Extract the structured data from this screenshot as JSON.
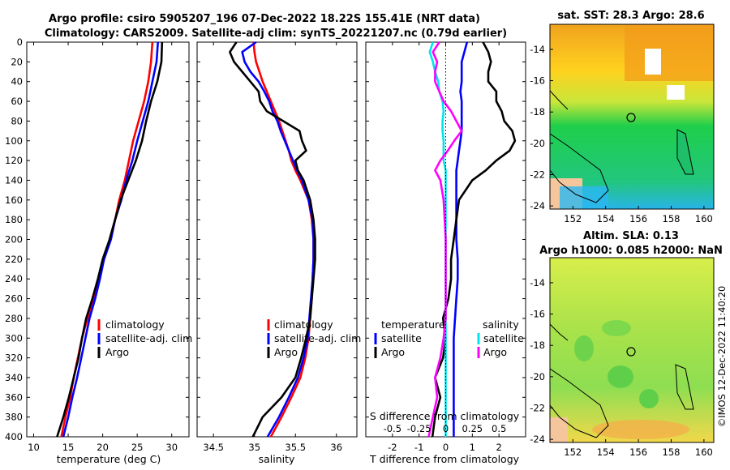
{
  "title": {
    "line1": "Argo profile: csiro 5905207_196 07-Dec-2022 18.22S 155.41E (NRT data)",
    "line2": "Climatology: CARS2009. Satellite-adj clim: synTS_20221207.nc (0.79d earlier)"
  },
  "colors": {
    "climatology": "#ff0000",
    "satellite": "#0000ff",
    "argo": "#000000",
    "sat_salinity": "#00e5ee",
    "argo_salinity": "#ff00ff"
  },
  "depth_axis": {
    "range": [
      0,
      400
    ],
    "ticks": [
      "0",
      "20",
      "40",
      "60",
      "80",
      "100",
      "120",
      "140",
      "160",
      "180",
      "200",
      "220",
      "240",
      "260",
      "280",
      "300",
      "320",
      "340",
      "360",
      "380",
      "400"
    ]
  },
  "chart_data": [
    {
      "type": "line",
      "name": "temperature",
      "xlabel": "temperature (deg C)",
      "xlim": [
        9,
        32.5
      ],
      "xticks": [
        "10",
        "15",
        "20",
        "25",
        "30"
      ],
      "ylim": [
        400,
        0
      ],
      "legend": [
        "climatology",
        "satellite-adj. clim",
        "Argo"
      ],
      "depth": [
        0,
        20,
        40,
        60,
        80,
        100,
        120,
        140,
        160,
        180,
        200,
        220,
        240,
        260,
        280,
        300,
        320,
        340,
        360,
        380,
        400
      ],
      "series": [
        {
          "name": "climatology",
          "values": [
            27.2,
            27.0,
            26.6,
            26.0,
            25.2,
            24.4,
            23.8,
            23.2,
            22.4,
            21.8,
            21.0,
            20.2,
            19.4,
            18.6,
            17.8,
            17.0,
            16.4,
            15.8,
            15.3,
            14.6,
            14.0
          ]
        },
        {
          "name": "satellite-adj. clim",
          "values": [
            28.0,
            27.8,
            27.2,
            26.6,
            25.8,
            25.0,
            24.3,
            23.4,
            22.7,
            21.8,
            21.2,
            20.2,
            19.6,
            18.9,
            18.1,
            17.5,
            16.9,
            16.3,
            15.6,
            15.0,
            14.3
          ]
        },
        {
          "name": "Argo",
          "values": [
            28.6,
            28.5,
            27.9,
            27.0,
            26.3,
            25.7,
            24.8,
            23.7,
            22.6,
            21.8,
            21.0,
            20.0,
            19.3,
            18.5,
            17.6,
            17.0,
            16.5,
            15.8,
            15.1,
            14.3,
            13.4
          ]
        }
      ]
    },
    {
      "type": "line",
      "name": "salinity",
      "xlabel": "salinity",
      "xlim": [
        34.3,
        36.25
      ],
      "xticks": [
        "34.5",
        "35",
        "35.5",
        "36"
      ],
      "ylim": [
        400,
        0
      ],
      "legend": [
        "climatology",
        "satellite-adj. clim",
        "Argo"
      ],
      "depth": [
        0,
        10,
        20,
        30,
        40,
        50,
        60,
        70,
        80,
        90,
        100,
        110,
        120,
        130,
        140,
        160,
        180,
        200,
        220,
        240,
        260,
        280,
        300,
        320,
        340,
        360,
        380,
        400
      ],
      "series": [
        {
          "name": "climatology",
          "values": [
            34.99,
            35.0,
            35.02,
            35.06,
            35.1,
            35.15,
            35.2,
            35.25,
            35.3,
            35.34,
            35.38,
            35.42,
            35.45,
            35.5,
            35.56,
            35.66,
            35.7,
            35.72,
            35.72,
            35.71,
            35.7,
            35.68,
            35.66,
            35.62,
            35.56,
            35.45,
            35.33,
            35.2
          ]
        },
        {
          "name": "satellite-adj. clim",
          "values": [
            35.02,
            34.85,
            34.88,
            34.95,
            35.05,
            35.12,
            35.18,
            35.22,
            35.28,
            35.32,
            35.37,
            35.42,
            35.47,
            35.52,
            35.58,
            35.66,
            35.71,
            35.72,
            35.72,
            35.71,
            35.69,
            35.67,
            35.65,
            35.6,
            35.53,
            35.42,
            35.3,
            35.16
          ]
        },
        {
          "name": "Argo",
          "values": [
            34.78,
            34.7,
            34.75,
            34.85,
            34.95,
            35.05,
            35.07,
            35.15,
            35.35,
            35.55,
            35.58,
            35.63,
            35.5,
            35.53,
            35.6,
            35.68,
            35.72,
            35.74,
            35.74,
            35.72,
            35.7,
            35.68,
            35.63,
            35.57,
            35.5,
            35.33,
            35.1,
            34.98
          ]
        }
      ]
    },
    {
      "type": "line",
      "name": "difference_from_climatology",
      "xlabel": "T difference from climatology",
      "xlabel_top": "S difference from climatology",
      "xlim": [
        -3,
        3
      ],
      "xticks": [
        "-2",
        "-1",
        "0",
        "1",
        "2"
      ],
      "xticks_s": [
        "-0.5",
        "-0.25",
        "0",
        "0.25",
        "0.5"
      ],
      "ylim": [
        400,
        0
      ],
      "legend_temperature_title": "temperature",
      "legend_temperature": [
        "satellite",
        "Argo"
      ],
      "legend_salinity_title": "salinity",
      "legend_salinity": [
        "satellite",
        "Argo"
      ],
      "depth": [
        0,
        10,
        20,
        30,
        40,
        50,
        60,
        70,
        80,
        90,
        100,
        110,
        120,
        130,
        140,
        160,
        180,
        200,
        220,
        240,
        260,
        280,
        300,
        320,
        340,
        360,
        380,
        400
      ],
      "series": [
        {
          "name": "T satellite",
          "values": [
            0.8,
            0.7,
            0.6,
            0.6,
            0.6,
            0.55,
            0.6,
            0.6,
            0.6,
            0.6,
            0.55,
            0.5,
            0.45,
            0.4,
            0.4,
            0.4,
            0.4,
            0.4,
            0.45,
            0.45,
            0.4,
            0.35,
            0.3,
            0.3,
            0.3,
            0.3,
            0.3,
            0.3
          ]
        },
        {
          "name": "T Argo",
          "values": [
            1.4,
            1.6,
            1.7,
            1.6,
            1.6,
            1.9,
            1.9,
            2.1,
            2.2,
            2.5,
            2.6,
            2.4,
            1.9,
            1.5,
            1.0,
            0.5,
            0.4,
            0.3,
            0.2,
            0.2,
            0.1,
            -0.1,
            0.0,
            -0.1,
            -0.4,
            -0.2,
            -0.4,
            -0.5
          ]
        },
        {
          "name": "S satellite",
          "values": [
            -0.12,
            -0.15,
            -0.12,
            -0.1,
            -0.07,
            -0.06,
            -0.03,
            -0.02,
            -0.03,
            -0.03,
            -0.02,
            -0.02,
            -0.02,
            0.0,
            0.0,
            0.0,
            0.0,
            0.0,
            0.0,
            0.0,
            0.0,
            0.0,
            0.0,
            0.0,
            0.0,
            0.0,
            0.0,
            0.0
          ]
        },
        {
          "name": "S Argo",
          "values": [
            -0.06,
            -0.12,
            -0.08,
            -0.1,
            -0.1,
            -0.06,
            -0.02,
            0.05,
            0.1,
            0.15,
            0.08,
            0.02,
            -0.05,
            -0.1,
            -0.05,
            -0.02,
            -0.01,
            0.0,
            0.0,
            0.0,
            0.0,
            0.0,
            -0.02,
            -0.05,
            -0.1,
            -0.08,
            -0.12,
            -0.16
          ]
        }
      ]
    },
    {
      "type": "heatmap",
      "name": "sat_sst_map",
      "title": "sat. SST: 28.3 Argo: 28.6",
      "xticks": [
        "152",
        "154",
        "156",
        "158",
        "160"
      ],
      "yticks": [
        "-14",
        "-16",
        "-18",
        "-20",
        "-22",
        "-24"
      ]
    },
    {
      "type": "heatmap",
      "name": "altim_sla_map",
      "title_line1": "Altim. SLA: 0.13",
      "title_line2": "Argo h1000: 0.085 h2000: NaN",
      "xticks": [
        "152",
        "154",
        "156",
        "158",
        "160"
      ],
      "yticks": [
        "-14",
        "-16",
        "-18",
        "-20",
        "-22",
        "-24"
      ]
    }
  ],
  "watermark": "©IMOS 12-Dec-2022 11:40:20"
}
